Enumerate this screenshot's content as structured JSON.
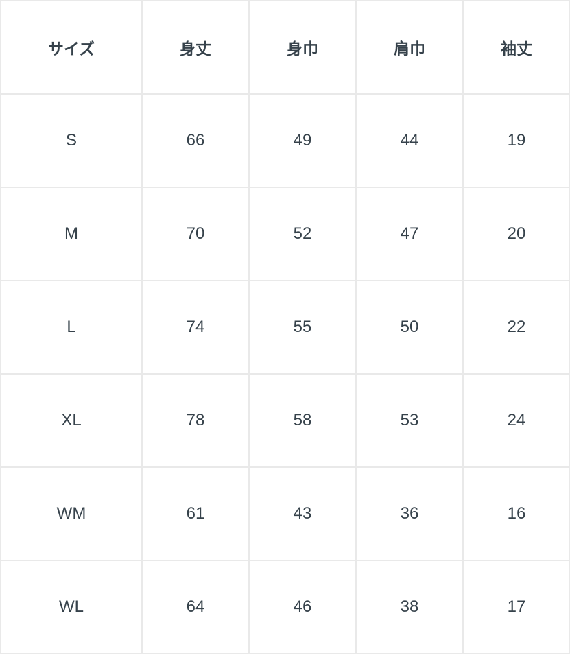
{
  "table": {
    "headers": [
      "サイズ",
      "身丈",
      "身巾",
      "肩巾",
      "袖丈"
    ],
    "rows": [
      [
        "S",
        "66",
        "49",
        "44",
        "19"
      ],
      [
        "M",
        "70",
        "52",
        "47",
        "20"
      ],
      [
        "L",
        "74",
        "55",
        "50",
        "22"
      ],
      [
        "XL",
        "78",
        "58",
        "53",
        "24"
      ],
      [
        "WM",
        "61",
        "43",
        "36",
        "16"
      ],
      [
        "WL",
        "64",
        "46",
        "38",
        "17"
      ]
    ]
  }
}
